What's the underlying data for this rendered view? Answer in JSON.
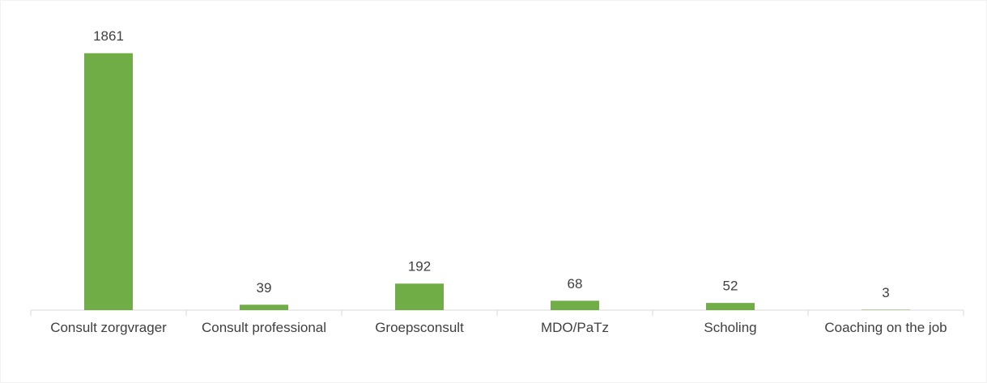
{
  "chart_data": {
    "type": "bar",
    "categories": [
      "Consult zorgvrager",
      "Consult professional",
      "Groepsconsult",
      "MDO/PaTz",
      "Scholing",
      "Coaching on the job"
    ],
    "values": [
      1861,
      39,
      192,
      68,
      52,
      3
    ],
    "color": "#70ad47",
    "ylim": [
      0,
      2000
    ]
  }
}
